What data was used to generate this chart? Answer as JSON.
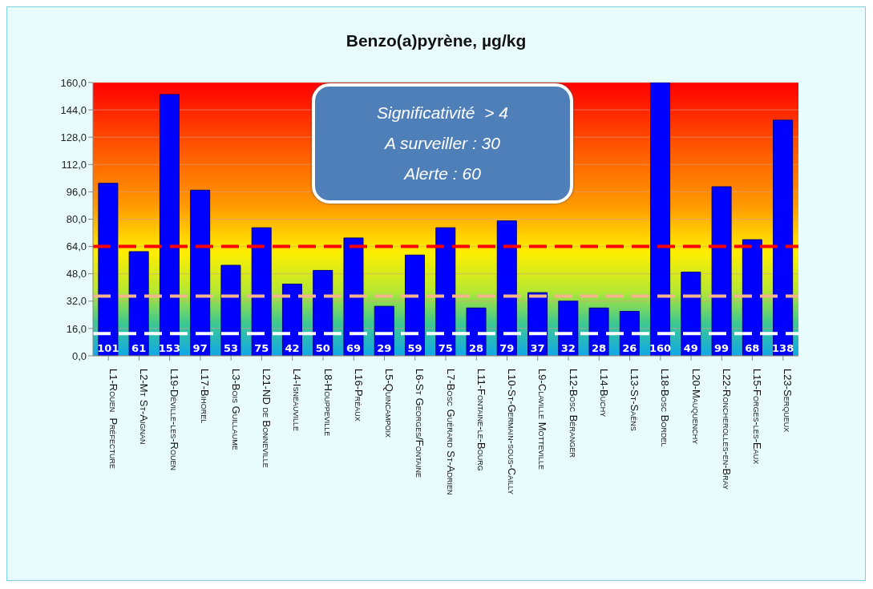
{
  "chart_data": {
    "type": "bar",
    "title": "Benzo(a)pyrène, µg/kg",
    "categories": [
      "L1-Rouen  Préfecture",
      "L2-Mt St-Aignan",
      "L19-Déville-les-Rouen",
      "L17-Bihorel",
      "L3-Bois Guillaume",
      "L21-ND de Bonneville",
      "L4-Isneauville",
      "L8-Houppeville",
      "L16-Préaux",
      "L5-Quincampoix",
      "L6-St Georges/Fontaine",
      "L7-Bosc Guérard St-Adrien",
      "L11-Fontaine-le-Bourg",
      "L10-St-Germain-sous-Cailly",
      "L9-Claville Motteville",
      "L12-Bosc Béranger",
      "L14-Buchy",
      "L13-St-Saëns",
      "L18-Bosc Bordel",
      "L20-Mauquenchy",
      "L22-Roncherolles-en-Bray",
      "L15-Forges-les-Eaux",
      "L23-Serqueux"
    ],
    "values": [
      101,
      61,
      153,
      97,
      53,
      75,
      42,
      50,
      69,
      29,
      59,
      75,
      28,
      79,
      37,
      32,
      28,
      26,
      160,
      49,
      99,
      68,
      138
    ],
    "color": "#0000ff",
    "ylim": [
      0,
      160
    ],
    "yticks": [
      {
        "value": 0,
        "label": "0,0"
      },
      {
        "value": 16,
        "label": "16,0"
      },
      {
        "value": 32,
        "label": "32,0"
      },
      {
        "value": 48,
        "label": "48,0"
      },
      {
        "value": 64,
        "label": "64,0"
      },
      {
        "value": 80,
        "label": "80,0"
      },
      {
        "value": 96,
        "label": "96,0"
      },
      {
        "value": 112,
        "label": "112,0"
      },
      {
        "value": 128,
        "label": "128,0"
      },
      {
        "value": 144,
        "label": "144,0"
      },
      {
        "value": 160,
        "label": "160,0"
      }
    ],
    "grid": "y",
    "legend": false,
    "data_labels": true,
    "ref_lines": [
      {
        "axis": "y",
        "value": 64,
        "color": "#ff0000",
        "line_style": "dashed"
      },
      {
        "axis": "y",
        "value": 35,
        "color": "#f5b48c",
        "line_style": "dashed"
      },
      {
        "axis": "y",
        "value": 13,
        "color": "#ffffff",
        "line_style": "dashed"
      }
    ],
    "annotations": [
      "Significativité  > 4",
      "A surveiller : 30",
      "Alerte : 60"
    ]
  }
}
